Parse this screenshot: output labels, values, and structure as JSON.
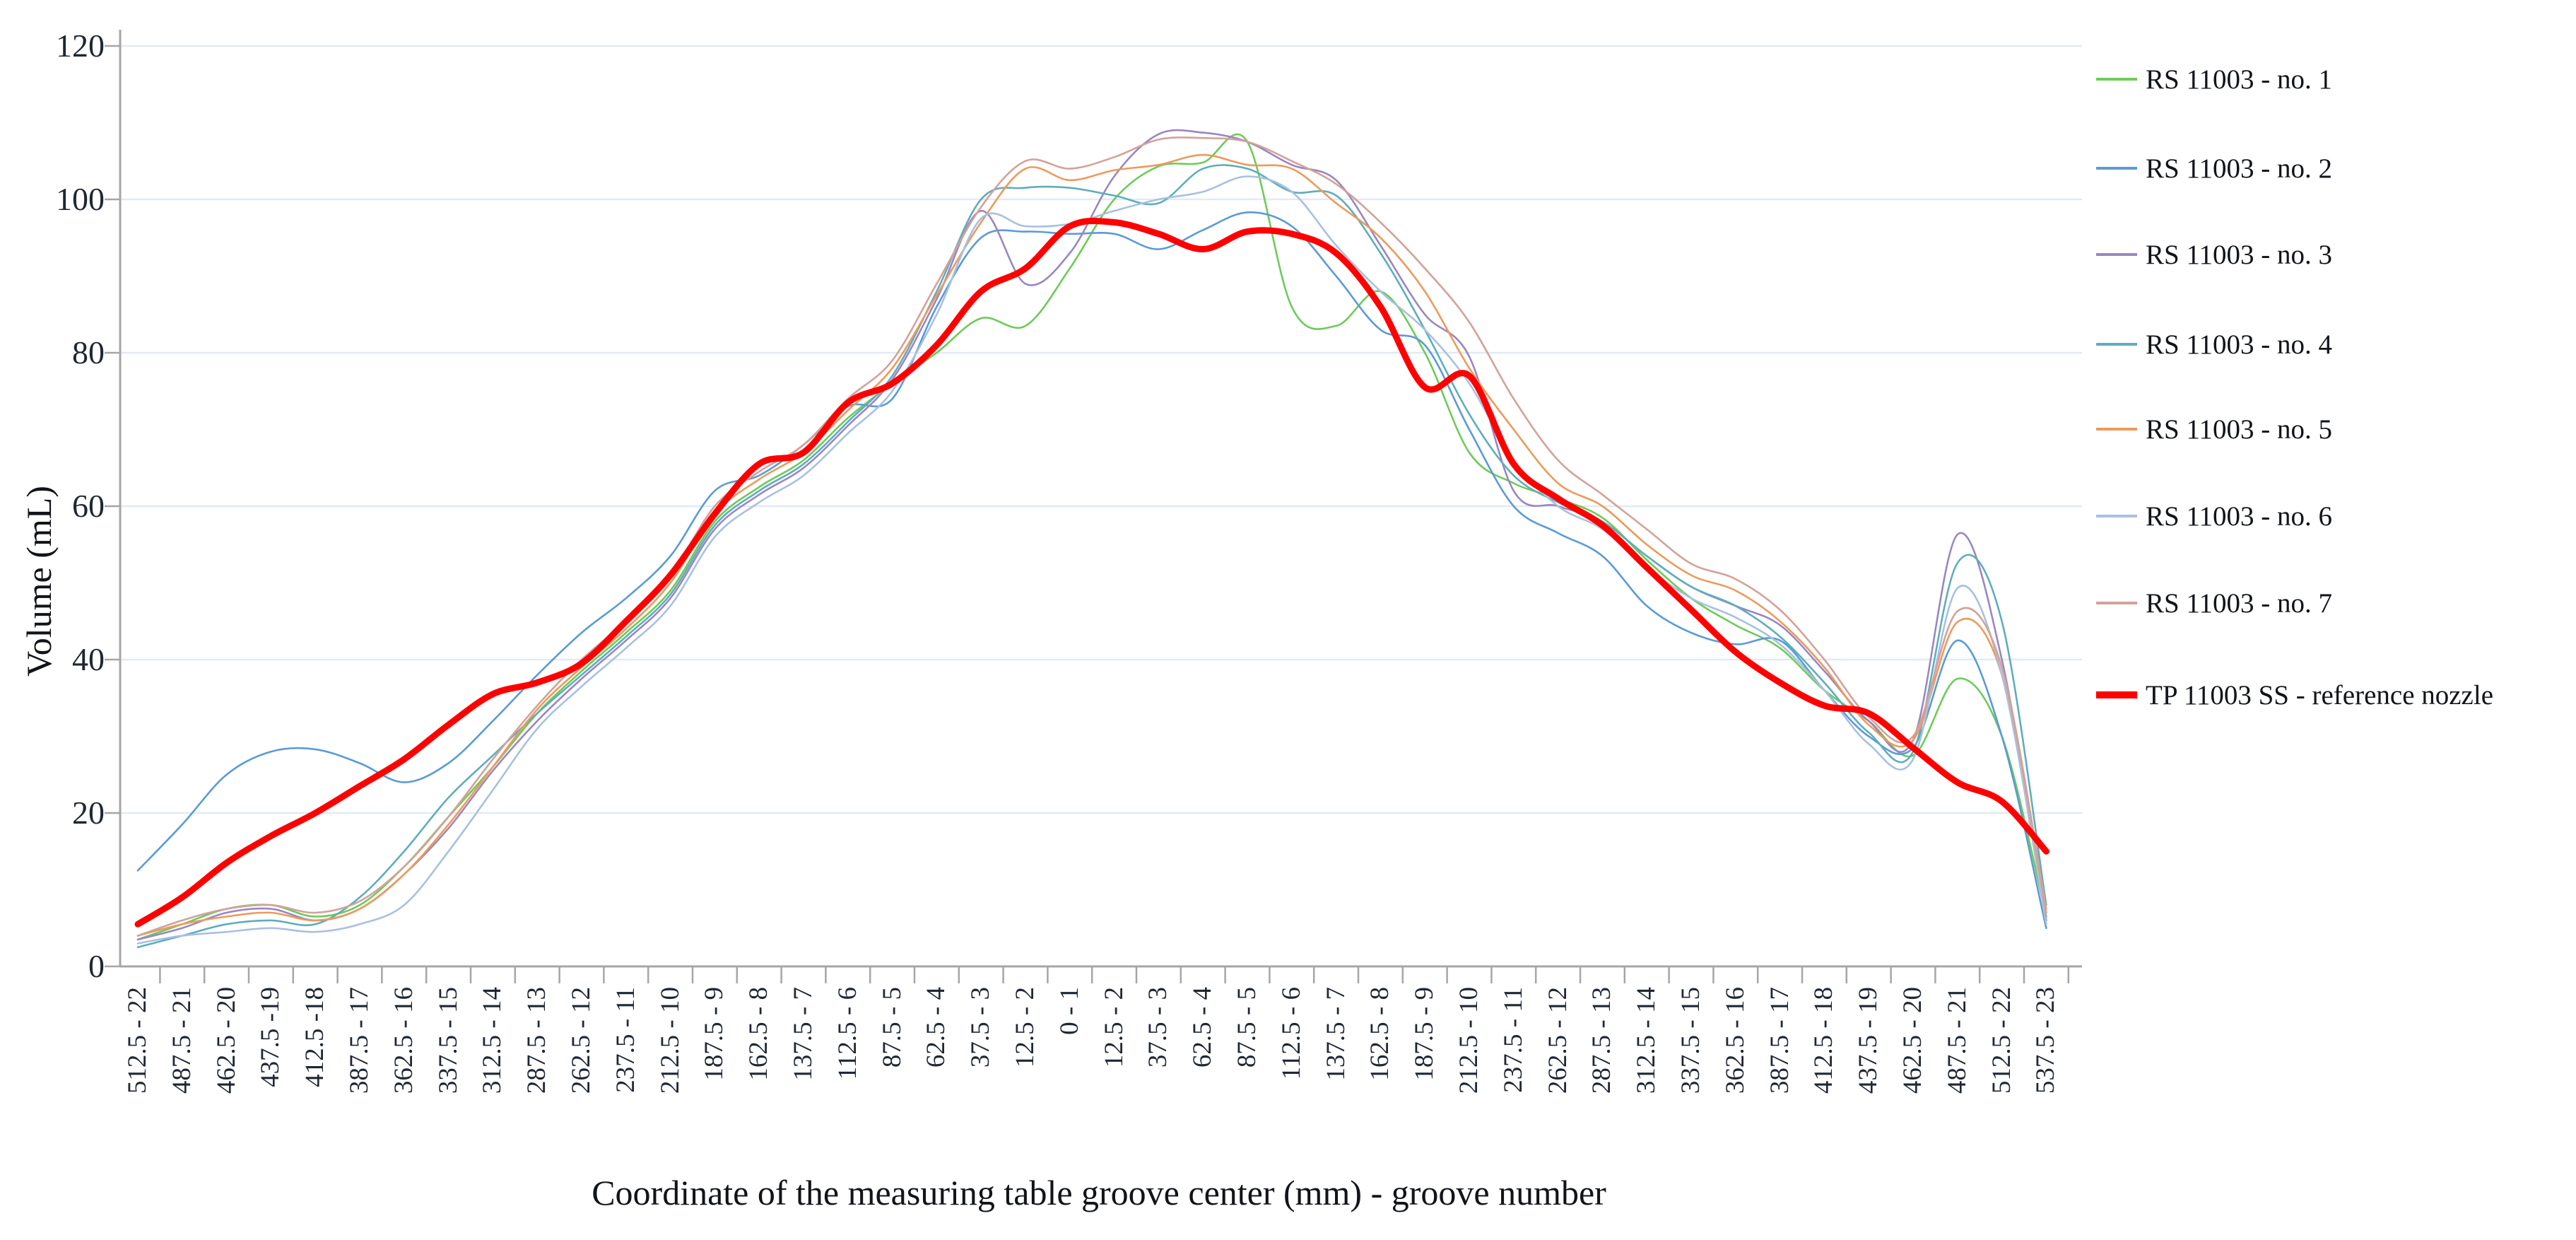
{
  "chart_data": {
    "type": "line",
    "title": "",
    "xlabel": "Coordinate of the measuring table groove center (mm) - groove number",
    "ylabel": "Volume (mL)",
    "ylim": [
      0,
      120
    ],
    "yticks": [
      0,
      20,
      40,
      60,
      80,
      100,
      120
    ],
    "grid": "horizontal light lines every 20 mL",
    "legend_position": "right",
    "colors": {
      "grid": "#e2eaf5",
      "axis": "#a6a6a6",
      "tick_text": "#1f2733",
      "reference_red": "#ff0000"
    },
    "categories": [
      "512.5 - 22",
      "487.5 - 21",
      "462.5 - 20",
      "437.5 -19",
      "412.5 -18",
      "387.5 - 17",
      "362.5 - 16",
      "337.5 - 15",
      "312.5 - 14",
      "287.5 - 13",
      "262.5 - 12",
      "237.5 - 11",
      "212.5 - 10",
      "187.5 - 9",
      "162.5 - 8",
      "137.5 - 7",
      "112.5 - 6",
      "87.5 - 5",
      "62.5 - 4",
      "37.5 - 3",
      "12.5 - 2",
      "0 - 1",
      "12.5 - 2",
      "37.5 - 3",
      "62.5 - 4",
      "87.5 - 5",
      "112.5 - 6",
      "137.5 - 7",
      "162.5 - 8",
      "187.5 - 9",
      "212.5 - 10",
      "237.5 - 11",
      "262.5 - 12",
      "287.5 - 13",
      "312.5 - 14",
      "337.5 - 15",
      "362.5 - 16",
      "387.5 - 17",
      "412.5 - 18",
      "437.5 - 19",
      "462.5 - 20",
      "487.5 - 21",
      "512.5 - 22",
      "537.5 - 23"
    ],
    "series": [
      {
        "name": "RS 11003 - no. 1",
        "color": "#6ecb5a",
        "width": 2.6,
        "values": [
          3.5,
          5.5,
          7.5,
          8,
          6.5,
          8,
          13,
          19.5,
          26,
          33,
          38.5,
          43.5,
          49,
          58,
          62.5,
          66,
          71.5,
          76,
          80,
          84.5,
          83.5,
          91,
          100,
          104.3,
          104.8,
          107.5,
          86,
          83.5,
          88,
          80,
          67,
          63,
          61,
          58.5,
          53,
          48,
          44.5,
          41.5,
          36,
          32,
          27.5,
          37.5,
          30,
          6.5
        ]
      },
      {
        "name": "RS 11003 - no. 2",
        "color": "#5b9bd5",
        "width": 2.6,
        "values": [
          12.5,
          18.5,
          25,
          28,
          28.3,
          26.5,
          24,
          26.5,
          32,
          38,
          43.5,
          48,
          53.5,
          62,
          64,
          68,
          73,
          74,
          86,
          95,
          95.8,
          95.5,
          95.5,
          93.5,
          96,
          98.3,
          96.5,
          90,
          83,
          81,
          70,
          60,
          56.5,
          53.5,
          47,
          43.5,
          42,
          42.5,
          36,
          30,
          28.5,
          42.5,
          30,
          5
        ]
      },
      {
        "name": "RS 11003 - no. 3",
        "color": "#9b87c2",
        "width": 2.6,
        "values": [
          3.5,
          5,
          7,
          7.5,
          6,
          7.5,
          12,
          18,
          25.5,
          32,
          37.5,
          42.5,
          48,
          57,
          61.5,
          65,
          70.5,
          76.5,
          87,
          98.5,
          89,
          93,
          103,
          108.5,
          108.7,
          107.5,
          104.5,
          102.5,
          94,
          85,
          79.5,
          62,
          60,
          58,
          53.5,
          49.5,
          47,
          44.5,
          38.5,
          32,
          29.5,
          56.3,
          40,
          6
        ]
      },
      {
        "name": "RS 11003 - no. 4",
        "color": "#5fadbd",
        "width": 2.6,
        "values": [
          2.5,
          4,
          5.5,
          6,
          5.5,
          9,
          15,
          22,
          27.5,
          33,
          38,
          43,
          48.5,
          57.5,
          62,
          65.5,
          71,
          77,
          88,
          100,
          101.5,
          101.5,
          100.5,
          99.5,
          104,
          104,
          101,
          100.5,
          93,
          83,
          72,
          64,
          60.5,
          58,
          53.5,
          49.5,
          47,
          43,
          37,
          30.5,
          28,
          52.6,
          45,
          8
        ]
      },
      {
        "name": "RS 11003 - no. 5",
        "color": "#eb9b5d",
        "width": 2.6,
        "values": [
          4,
          5.5,
          6.5,
          7,
          6,
          7.5,
          12,
          18.5,
          26,
          33.5,
          39,
          44,
          50,
          59,
          63.5,
          67,
          72.5,
          78,
          87.5,
          97,
          104,
          102.5,
          103.8,
          104.5,
          105.8,
          104.5,
          104,
          99.5,
          95,
          88,
          78,
          70,
          63,
          60,
          55,
          51,
          49,
          45,
          39,
          31.5,
          29.5,
          44.9,
          38,
          7
        ]
      },
      {
        "name": "RS 11003 - no. 6",
        "color": "#a9c0e0",
        "width": 2.6,
        "values": [
          3,
          4,
          4.5,
          5,
          4.5,
          5.5,
          8,
          15,
          23,
          31,
          36.5,
          41.5,
          47,
          56,
          60.5,
          64,
          69.5,
          75,
          85,
          97.5,
          96.5,
          96.8,
          98.5,
          100,
          101,
          103,
          101,
          94,
          88,
          83,
          76,
          66,
          60,
          57,
          52,
          48,
          45.5,
          42,
          36,
          29,
          27,
          49.3,
          38,
          5.5
        ]
      },
      {
        "name": "RS 11003 - no. 7",
        "color": "#d3a29a",
        "width": 2.6,
        "values": [
          4,
          6,
          7.5,
          8,
          7,
          8.5,
          13,
          19.5,
          27,
          34,
          40,
          45,
          51,
          60,
          64.5,
          68,
          74,
          79,
          89,
          99,
          105,
          104,
          105.5,
          107.8,
          108,
          107.5,
          105,
          102,
          97,
          91,
          84,
          74,
          66,
          61.5,
          57,
          52.5,
          50.5,
          46.5,
          40,
          32.5,
          30,
          46.3,
          39,
          7.5
        ]
      },
      {
        "name": "TP 11003 SS - reference nozzle",
        "color": "#ff0000",
        "width": 9,
        "values": [
          5.5,
          9,
          13.5,
          17,
          20,
          23.5,
          27,
          31.5,
          35.5,
          37,
          39.5,
          45,
          51,
          59,
          65.5,
          67,
          73.5,
          76,
          81,
          88,
          91,
          96.5,
          97,
          95.5,
          93.5,
          95.8,
          95.5,
          93,
          86,
          75.5,
          77,
          65.5,
          61,
          57.5,
          52,
          46.5,
          41,
          37,
          34,
          33,
          28.5,
          24,
          21.5,
          15
        ]
      }
    ]
  }
}
